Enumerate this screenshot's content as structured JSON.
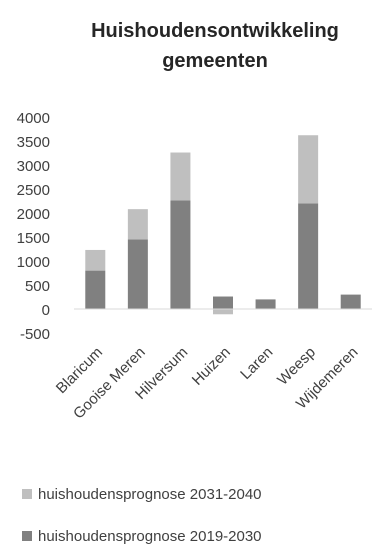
{
  "chart_data": {
    "type": "bar",
    "stacked": true,
    "title_line1": "Huishoudensontwikkeling",
    "title_line2": "gemeenten",
    "categories": [
      "Blaricum",
      "Gooise Meren",
      "Hilversum",
      "Huizen",
      "Laren",
      "Weesp",
      "Wijdemeren"
    ],
    "series": [
      {
        "name": "huishoudensprognose 2019-2030",
        "color": "#808080",
        "values": [
          800,
          1450,
          2260,
          260,
          200,
          2200,
          300
        ]
      },
      {
        "name": "huishoudensprognose 2031-2040",
        "color": "#bfbfbf",
        "values": [
          430,
          630,
          1000,
          -110,
          -10,
          1420,
          -10
        ]
      }
    ],
    "ylim": [
      -500,
      4000
    ],
    "yticks": [
      4000,
      3500,
      3000,
      2500,
      2000,
      1500,
      1000,
      500,
      0,
      -500
    ],
    "grid": false,
    "legend_position": "bottom"
  }
}
